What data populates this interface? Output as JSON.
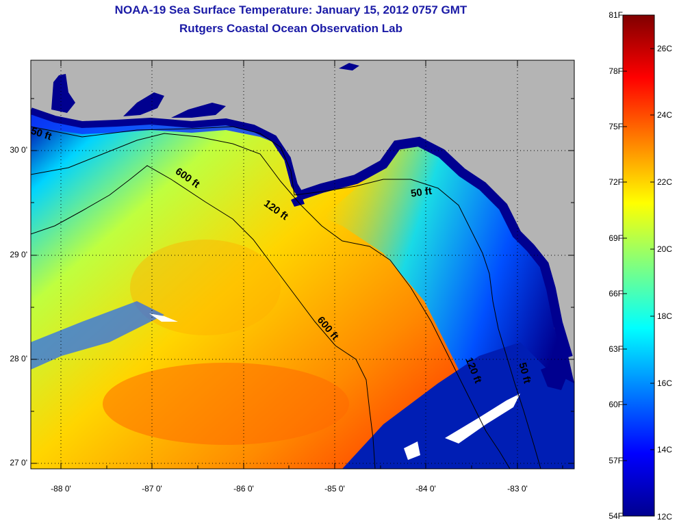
{
  "title": {
    "line1": "NOAA-19 Sea Surface Temperature:  January 15, 2012 0757 GMT",
    "line2": "Rutgers Coastal Ocean Observation Lab"
  },
  "axes": {
    "longitude_labels": [
      "-88 0'",
      "-87 0'",
      "-86 0'",
      "-85 0'",
      "-84 0'",
      "-83 0'"
    ],
    "latitude_labels": [
      "30 0'",
      "29 0'",
      "28 0'",
      "27 0'"
    ]
  },
  "contours": {
    "label_50_a": "50 ft",
    "label_50_b": "50 ft",
    "label_50_c": "50 ft",
    "label_120_a": "120 ft",
    "label_120_b": "120 ft",
    "label_600_a": "600 ft",
    "label_600_b": "600 ft"
  },
  "colorbar": {
    "fahrenheit_labels": [
      "81F",
      "78F",
      "75F",
      "72F",
      "69F",
      "66F",
      "63F",
      "60F",
      "57F",
      "54F"
    ],
    "celsius_labels": [
      "26C",
      "24C",
      "22C",
      "20C",
      "18C",
      "16C",
      "14C",
      "12C"
    ]
  },
  "colors": {
    "title": "#1a1aa6",
    "land": "#b4b4b4",
    "cold": "#00008f",
    "warm": "#ff6a00"
  }
}
